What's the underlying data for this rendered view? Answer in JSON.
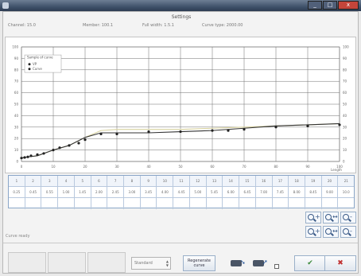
{
  "window": {
    "title": "",
    "minimize_glyph": "_",
    "maximize_glyph": "□",
    "close_glyph": "x"
  },
  "header": {
    "title": "Settings"
  },
  "info": {
    "field1": "Channel: 15.0",
    "field2": "Member: 100.1",
    "field3": "Full width: 1.5.1",
    "field4": "Curve type: 2000.00"
  },
  "chart_data": {
    "type": "line",
    "title": "",
    "legend": {
      "heading": "Sample of curve",
      "entries": [
        {
          "label": "VP"
        },
        {
          "label": "Curve"
        }
      ],
      "placement": "top-left"
    },
    "xlim": [
      0,
      100
    ],
    "ylim": [
      0,
      100
    ],
    "x_ticks": [
      0,
      10,
      20,
      30,
      40,
      50,
      60,
      70,
      80,
      90,
      100
    ],
    "y_ticks": [
      0,
      10,
      20,
      30,
      40,
      50,
      60,
      70,
      80,
      90,
      100
    ],
    "xlabel": "Length",
    "grid": true,
    "series": [
      {
        "name": "Curve",
        "color": "#333333",
        "points": [
          [
            0,
            3
          ],
          [
            2,
            4
          ],
          [
            5,
            5
          ],
          [
            10,
            10
          ],
          [
            15,
            14
          ],
          [
            20,
            21
          ],
          [
            25,
            25
          ],
          [
            30,
            25
          ],
          [
            40,
            25
          ],
          [
            50,
            26
          ],
          [
            60,
            27
          ],
          [
            70,
            29
          ],
          [
            80,
            31
          ],
          [
            90,
            32
          ],
          [
            100,
            33
          ]
        ]
      },
      {
        "name": "VP",
        "color": "#d8d2a0",
        "points": [
          [
            0,
            3
          ],
          [
            2,
            4
          ],
          [
            5,
            5
          ],
          [
            10,
            10
          ],
          [
            15,
            14
          ],
          [
            20,
            21
          ],
          [
            25,
            27
          ],
          [
            30,
            28
          ],
          [
            40,
            28
          ],
          [
            50,
            28
          ],
          [
            60,
            29
          ],
          [
            70,
            30
          ],
          [
            80,
            31
          ],
          [
            90,
            32
          ],
          [
            100,
            33
          ]
        ]
      }
    ],
    "markers": [
      [
        0,
        3
      ],
      [
        1,
        3.5
      ],
      [
        2,
        4
      ],
      [
        3,
        5
      ],
      [
        5,
        6
      ],
      [
        7,
        7
      ],
      [
        10,
        10
      ],
      [
        12,
        12
      ],
      [
        15,
        14
      ],
      [
        18,
        16
      ],
      [
        20,
        19
      ],
      [
        25,
        24
      ],
      [
        30,
        24
      ],
      [
        40,
        26
      ],
      [
        50,
        26
      ],
      [
        60,
        27
      ],
      [
        65,
        27
      ],
      [
        70,
        28
      ],
      [
        80,
        30
      ],
      [
        90,
        31
      ],
      [
        100,
        32
      ]
    ]
  },
  "table": {
    "headers": [
      "1",
      "2",
      "3",
      "4",
      "5",
      "6",
      "7",
      "8",
      "9",
      "10",
      "11",
      "12",
      "13",
      "14",
      "15",
      "16",
      "17",
      "18",
      "19",
      "20",
      "21"
    ],
    "row1": [
      "0.25",
      "0.45",
      "0.55",
      "1.00",
      "1.45",
      "2.00",
      "2.45",
      "3.00",
      "3.45",
      "4.00",
      "4.45",
      "5.00",
      "5.45",
      "6.00",
      "6.45",
      "7.00",
      "7.45",
      "8.00",
      "8.45",
      "9.00",
      "10.0"
    ],
    "row2": [
      "",
      "",
      "",
      "",
      "",
      "",
      "",
      "",
      "",
      "",
      "",
      "",
      "",
      "",
      "",
      "",
      "",
      "",
      "",
      "",
      ""
    ]
  },
  "zoom": {
    "labels": [
      "+",
      "↔",
      "-",
      "+",
      "↔",
      "-"
    ]
  },
  "status": {
    "text": "Curve ready"
  },
  "bottom": {
    "dropdown_value": "Standard",
    "action_label_line1": "Regenerate",
    "action_label_line2": "curve",
    "ok_glyph": "✔",
    "cancel_glyph": "✖"
  }
}
